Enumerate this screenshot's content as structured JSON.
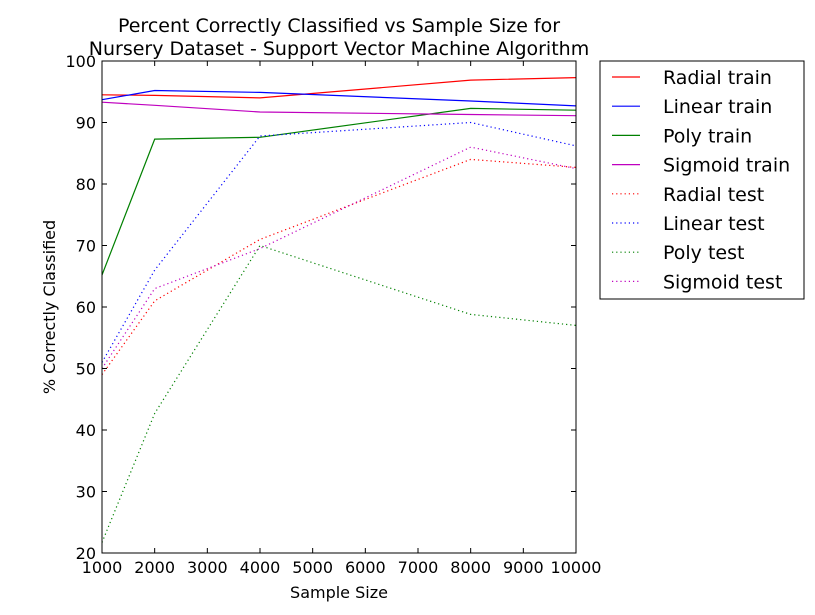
{
  "chart_data": {
    "type": "line",
    "title_lines": [
      "Percent Correctly Classified vs Sample Size for",
      "Nursery Dataset - Support Vector Machine Algorithm"
    ],
    "xlabel": "Sample Size",
    "ylabel": "% Correctly Classified",
    "xlim": [
      1000,
      10000
    ],
    "ylim": [
      20,
      100
    ],
    "x_ticks": [
      1000,
      2000,
      3000,
      4000,
      5000,
      6000,
      7000,
      8000,
      9000,
      10000
    ],
    "y_ticks": [
      20,
      30,
      40,
      50,
      60,
      70,
      80,
      90,
      100
    ],
    "grid": false,
    "legend_position": "outside-right-top",
    "series": [
      {
        "name": "Radial train",
        "color": "#ff0000",
        "style": "solid",
        "x": [
          1000,
          2000,
          4000,
          8000,
          10000
        ],
        "y": [
          94.5,
          94.4,
          94.0,
          96.9,
          97.3
        ]
      },
      {
        "name": "Linear train",
        "color": "#0000ff",
        "style": "solid",
        "x": [
          1000,
          2000,
          4000,
          8000,
          10000
        ],
        "y": [
          93.7,
          95.2,
          94.9,
          93.5,
          92.7
        ]
      },
      {
        "name": "Poly train",
        "color": "#008000",
        "style": "solid",
        "x": [
          1000,
          2000,
          4000,
          8000,
          10000
        ],
        "y": [
          65.2,
          87.3,
          87.6,
          92.3,
          92.0
        ]
      },
      {
        "name": "Sigmoid train",
        "color": "#bf00bf",
        "style": "solid",
        "x": [
          1000,
          2000,
          4000,
          8000,
          10000
        ],
        "y": [
          93.3,
          92.8,
          91.7,
          91.3,
          91.1
        ]
      },
      {
        "name": "Radial test",
        "color": "#ff0000",
        "style": "dotted",
        "x": [
          1000,
          2000,
          4000,
          8000,
          10000
        ],
        "y": [
          49.0,
          61.0,
          71.0,
          84.0,
          82.7
        ]
      },
      {
        "name": "Linear test",
        "color": "#0000ff",
        "style": "dotted",
        "x": [
          1000,
          2000,
          4000,
          8000,
          10000
        ],
        "y": [
          51.0,
          66.0,
          87.8,
          90.0,
          86.2
        ]
      },
      {
        "name": "Poly test",
        "color": "#008000",
        "style": "dotted",
        "x": [
          1000,
          2000,
          4000,
          8000,
          10000
        ],
        "y": [
          21.7,
          42.7,
          70.0,
          58.8,
          57.0
        ]
      },
      {
        "name": "Sigmoid test",
        "color": "#bf00bf",
        "style": "dotted",
        "x": [
          1000,
          2000,
          4000,
          8000,
          10000
        ],
        "y": [
          50.0,
          63.0,
          69.5,
          86.0,
          82.5
        ]
      }
    ]
  }
}
